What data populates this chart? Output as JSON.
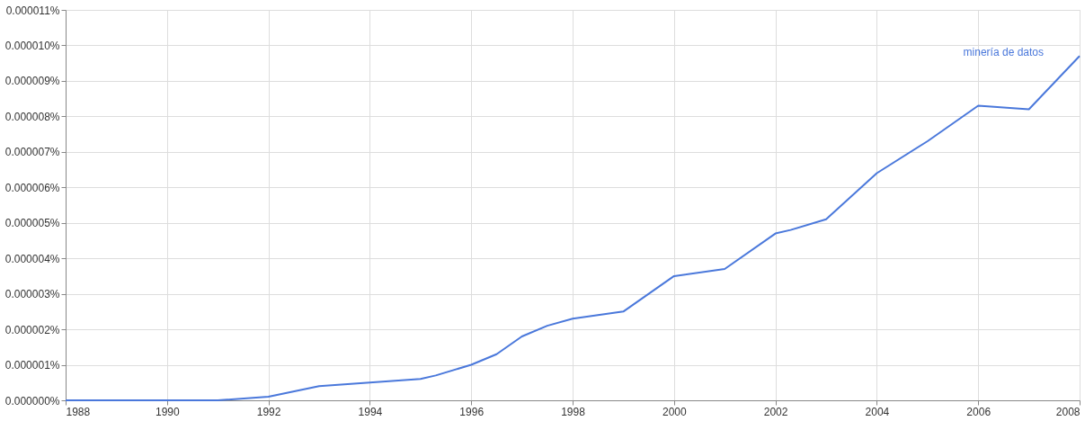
{
  "chart_data": {
    "type": "line",
    "x": [
      1988,
      1990,
      1991,
      1992,
      1993,
      1994,
      1995,
      1995.3,
      1996,
      1996.5,
      1997,
      1997.5,
      1998,
      1999,
      2000,
      2001,
      2002,
      2002.3,
      2003,
      2004,
      2005,
      2006,
      2007,
      2008
    ],
    "series": [
      {
        "name": "minería de datos",
        "color": "#4a78db",
        "values": [
          0.0,
          0.0,
          0.0,
          1e-07,
          4e-07,
          5e-07,
          6e-07,
          7e-07,
          1e-06,
          1.3e-06,
          1.8e-06,
          2.1e-06,
          2.3e-06,
          2.5e-06,
          3.5e-06,
          3.7e-06,
          4.7e-06,
          4.8e-06,
          5.1e-06,
          6.4e-06,
          7.3e-06,
          8.3e-06,
          8.2e-06,
          9.7e-06
        ]
      }
    ],
    "xlim": [
      1988,
      2008
    ],
    "xticks": [
      1988,
      1990,
      1992,
      1994,
      1996,
      1998,
      2000,
      2002,
      2004,
      2006,
      2008
    ],
    "ylim": [
      0,
      1.1e-05
    ],
    "yticks": [
      {
        "value": 0,
        "label": "0.000000%"
      },
      {
        "value": 1e-06,
        "label": "0.000001%"
      },
      {
        "value": 2e-06,
        "label": "0.000002%"
      },
      {
        "value": 3e-06,
        "label": "0.000003%"
      },
      {
        "value": 4e-06,
        "label": "0.000004%"
      },
      {
        "value": 5e-06,
        "label": "0.000005%"
      },
      {
        "value": 6e-06,
        "label": "0.000006%"
      },
      {
        "value": 7e-06,
        "label": "0.000007%"
      },
      {
        "value": 8e-06,
        "label": "0.000008%"
      },
      {
        "value": 9e-06,
        "label": "0.000009%"
      },
      {
        "value": 1e-05,
        "label": "0.000010%"
      },
      {
        "value": 1.1e-05,
        "label": "0.000011%"
      }
    ],
    "grid": true,
    "marker": "none",
    "line_style": "solid"
  }
}
